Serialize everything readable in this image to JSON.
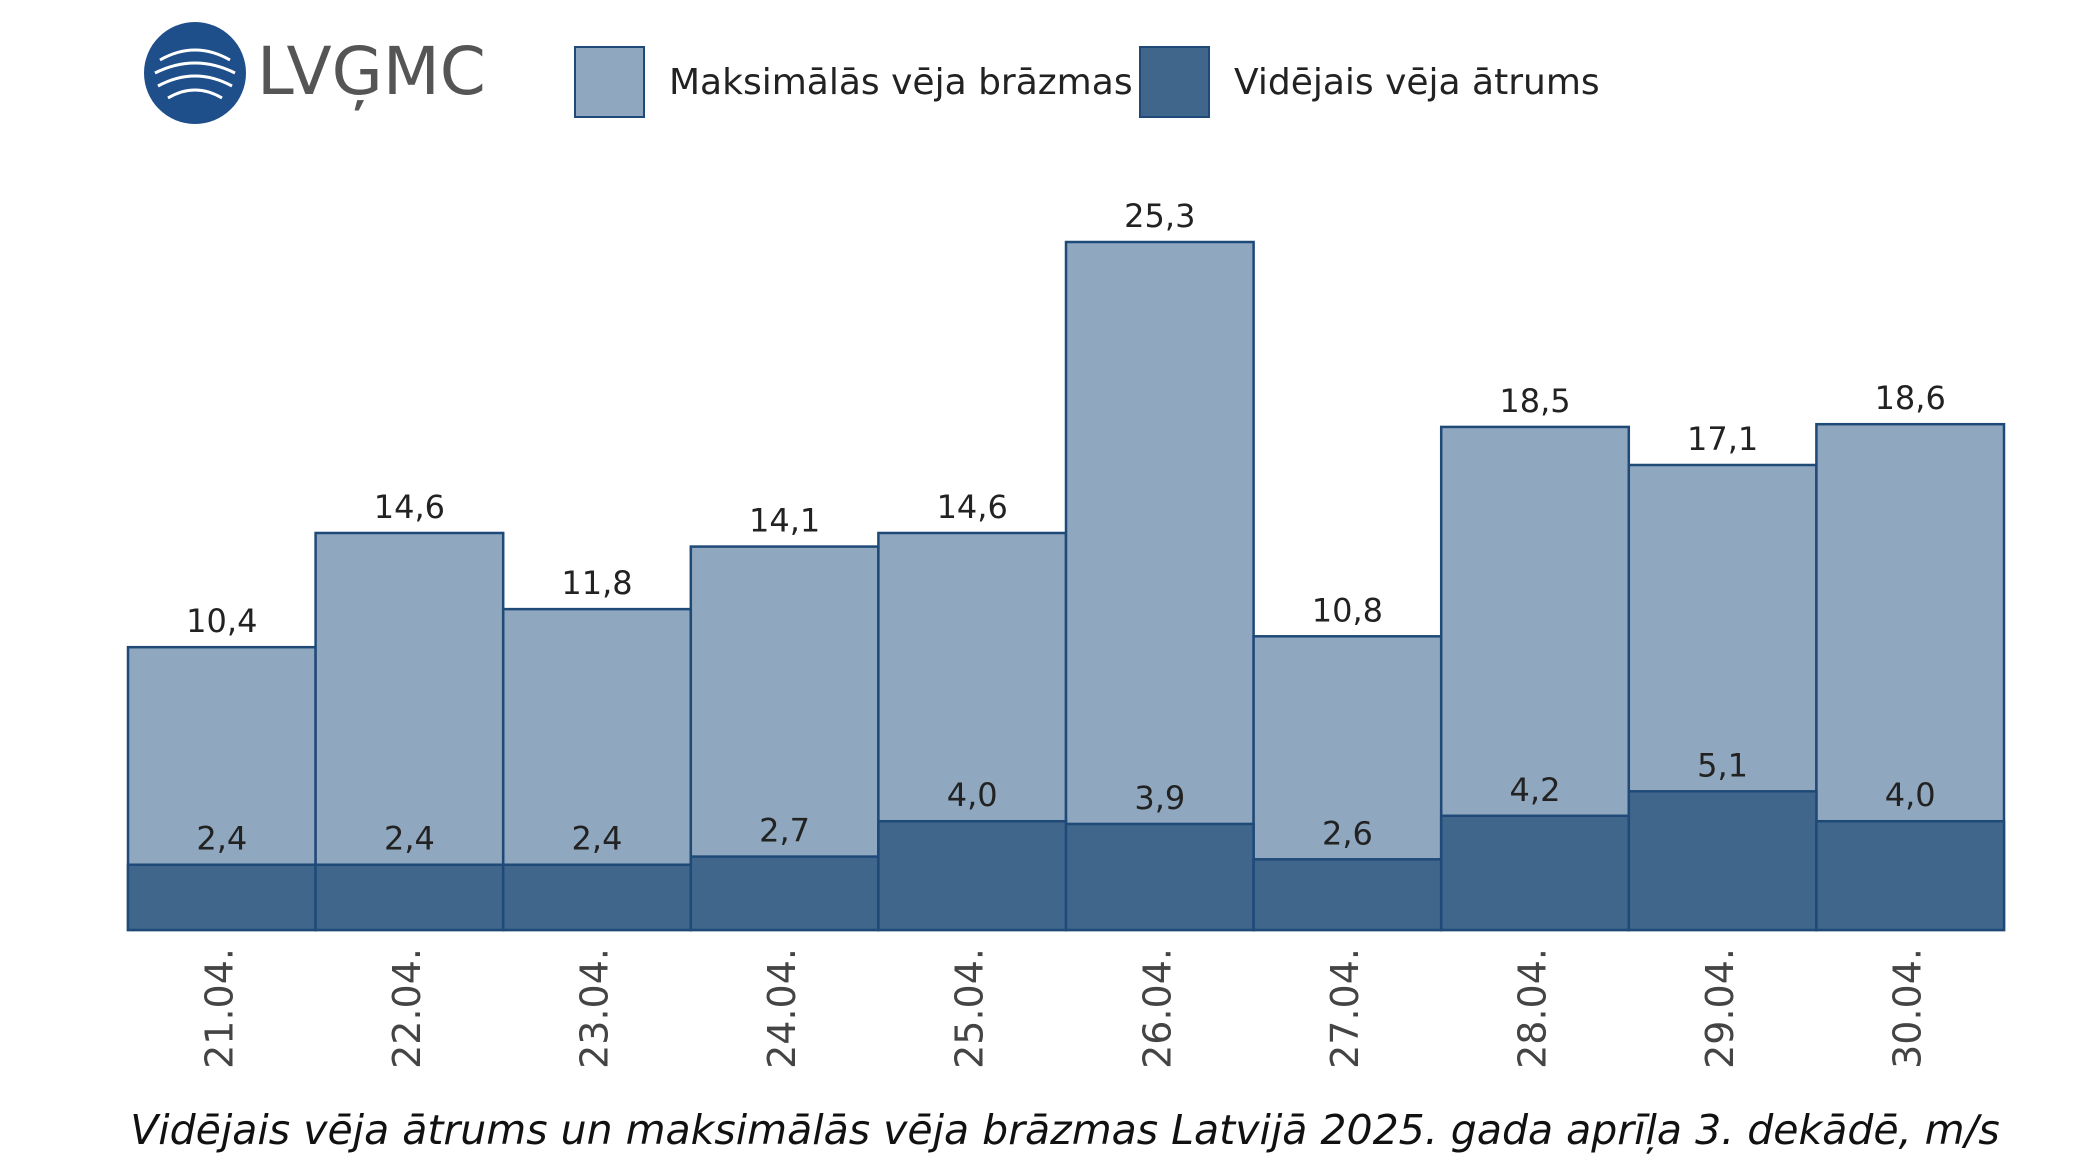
{
  "chart_data": {
    "type": "bar",
    "logo": "LVĢMC",
    "title": "Vidējais vēja ātrums un maksimālās vēja brāzmas Latvijā 2025. gada aprīļa 3. dekādē, m/s",
    "categories": [
      "21.04.",
      "22.04.",
      "23.04.",
      "24.04.",
      "25.04.",
      "26.04.",
      "27.04.",
      "28.04.",
      "29.04.",
      "30.04."
    ],
    "series": [
      {
        "name": "Maksimālās vēja brāzmas",
        "color": "#8fa7bf",
        "values": [
          10.4,
          14.6,
          11.8,
          14.1,
          14.6,
          25.3,
          10.8,
          18.5,
          17.1,
          18.6
        ],
        "value_labels": [
          "10,4",
          "14,6",
          "11,8",
          "14,1",
          "14,6",
          "25,3",
          "10,8",
          "18,5",
          "17,1",
          "18,6"
        ]
      },
      {
        "name": "Vidējais vēja ātrums",
        "color": "#41668c",
        "values": [
          2.4,
          2.4,
          2.4,
          2.7,
          4.0,
          3.9,
          2.6,
          4.2,
          5.1,
          4.0
        ],
        "value_labels": [
          "2,4",
          "2,4",
          "2,4",
          "2,7",
          "4,0",
          "3,9",
          "2,6",
          "4,2",
          "5,1",
          "4,0"
        ]
      }
    ]
  }
}
